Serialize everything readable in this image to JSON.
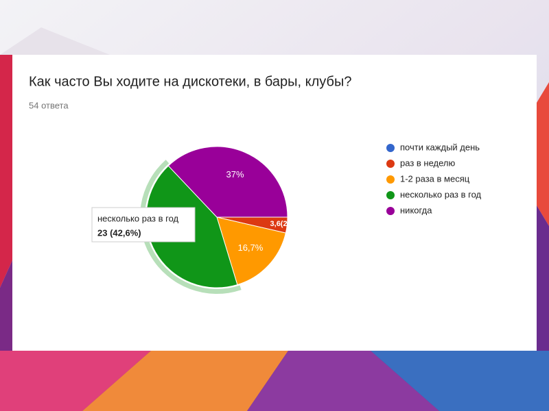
{
  "chart_data": {
    "type": "pie",
    "title": "Как часто Вы ходите на дискотеки, в бары, клубы?",
    "subtitle": "54 ответа",
    "categories": [
      "почти каждый день",
      "раз в неделю",
      "1-2 раза в месяц",
      "несколько раз в год",
      "никогда"
    ],
    "values": [
      0,
      3.6,
      16.7,
      42.6,
      37
    ],
    "value_labels": [
      null,
      "3,6(2",
      "16,7%",
      null,
      "37%"
    ],
    "colors": [
      "#3366cc",
      "#dc3912",
      "#ff9900",
      "#109618",
      "#990099"
    ],
    "legend": "right",
    "tooltip": {
      "title": "несколько раз в год",
      "text": "23 (42,6%)"
    }
  }
}
